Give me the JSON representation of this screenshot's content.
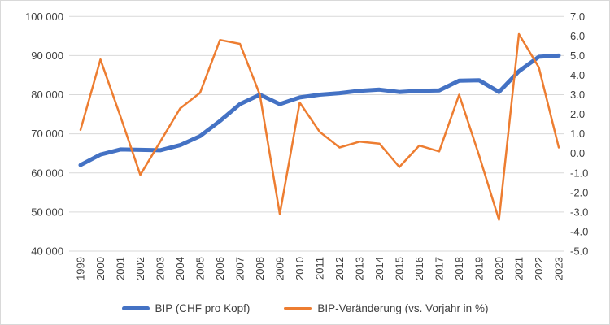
{
  "chart_data": {
    "type": "line",
    "title": "",
    "categories": [
      "1999",
      "2000",
      "2001",
      "2002",
      "2003",
      "2004",
      "2005",
      "2006",
      "2007",
      "2008",
      "2009",
      "2010",
      "2011",
      "2012",
      "2013",
      "2014",
      "2015",
      "2016",
      "2017",
      "2018",
      "2019",
      "2020",
      "2021",
      "2022",
      "2023"
    ],
    "series": [
      {
        "name": "BIP (CHF pro Kopf)",
        "axis": "left",
        "color": "#4472C4",
        "stroke_width": 5,
        "values": [
          62000,
          64700,
          66000,
          65900,
          65800,
          67100,
          69400,
          73300,
          77600,
          80000,
          77600,
          79300,
          80000,
          80400,
          81000,
          81300,
          80700,
          81000,
          81100,
          83600,
          83700,
          80700,
          86000,
          89700,
          90000
        ]
      },
      {
        "name": "BIP-Veränderung (vs. Vorjahr in %)",
        "axis": "right",
        "color": "#ED7D31",
        "stroke_width": 2.5,
        "values": [
          1.2,
          4.8,
          1.9,
          -1.1,
          0.6,
          2.3,
          3.1,
          5.8,
          5.6,
          3.0,
          -3.1,
          2.6,
          1.1,
          0.3,
          0.6,
          0.5,
          -0.7,
          0.4,
          0.1,
          3.0,
          -0.1,
          -3.4,
          6.1,
          4.4,
          0.3
        ]
      }
    ],
    "left_axis": {
      "min": 40000,
      "max": 100000,
      "ticks": [
        {
          "label": "100 000",
          "value": 100000
        },
        {
          "label": "90 000",
          "value": 90000
        },
        {
          "label": "80 000",
          "value": 80000
        },
        {
          "label": "70 000",
          "value": 70000
        },
        {
          "label": "60 000",
          "value": 60000
        },
        {
          "label": "50 000",
          "value": 50000
        },
        {
          "label": "40 000",
          "value": 40000
        }
      ]
    },
    "right_axis": {
      "min": -5,
      "max": 7,
      "ticks": [
        {
          "label": "7.0",
          "value": 7
        },
        {
          "label": "6.0",
          "value": 6
        },
        {
          "label": "5.0",
          "value": 5
        },
        {
          "label": "4.0",
          "value": 4
        },
        {
          "label": "3.0",
          "value": 3
        },
        {
          "label": "2.0",
          "value": 2
        },
        {
          "label": "1.0",
          "value": 1
        },
        {
          "label": "0.0",
          "value": 0
        },
        {
          "label": "-1.0",
          "value": -1
        },
        {
          "label": "-2.0",
          "value": -2
        },
        {
          "label": "-3.0",
          "value": -3
        },
        {
          "label": "-4.0",
          "value": -4
        },
        {
          "label": "-5.0",
          "value": -5
        }
      ]
    },
    "grid": {
      "on": true,
      "color": "#D9D9D9"
    },
    "legend": {
      "position": "bottom",
      "items": [
        {
          "label": "BIP (CHF pro Kopf)"
        },
        {
          "label": "BIP-Veränderung (vs. Vorjahr in %)"
        }
      ]
    }
  },
  "colors": {
    "background": "#FFFFFF",
    "border": "#D9D9D9",
    "axis_text": "#404040",
    "series_bip": "#4472C4",
    "series_veraenderung": "#ED7D31"
  }
}
